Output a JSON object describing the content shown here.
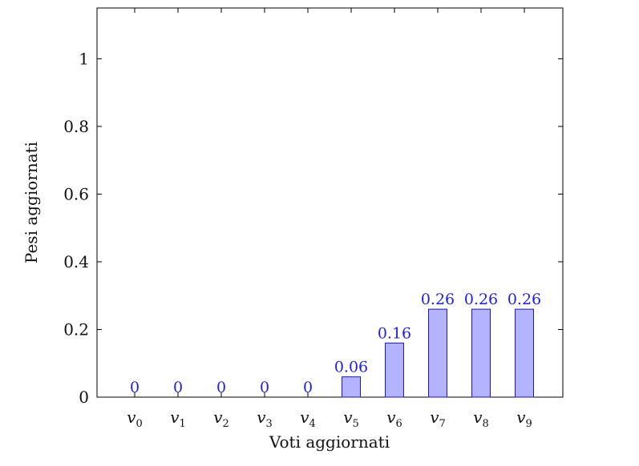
{
  "chart_data": {
    "type": "bar",
    "categories": [
      "v0",
      "v1",
      "v2",
      "v3",
      "v4",
      "v5",
      "v6",
      "v7",
      "v8",
      "v9"
    ],
    "category_base": "v",
    "category_subscripts": [
      "0",
      "1",
      "2",
      "3",
      "4",
      "5",
      "6",
      "7",
      "8",
      "9"
    ],
    "values": [
      0,
      0,
      0,
      0,
      0,
      0.06,
      0.16,
      0.26,
      0.26,
      0.26
    ],
    "value_labels": [
      "0",
      "0",
      "0",
      "0",
      "0",
      "0.06",
      "0.16",
      "0.26",
      "0.26",
      "0.26"
    ],
    "xlabel": "Voti aggiornati",
    "ylabel": "Pesi aggiornati",
    "ylim": [
      0,
      1.15
    ],
    "yticks": [
      0,
      0.2,
      0.4,
      0.6,
      0.8,
      1
    ],
    "ytick_labels": [
      "0",
      "0.2",
      "0.4",
      "0.6",
      "0.8",
      "1"
    ],
    "grid": false,
    "colors": {
      "bar_fill": "#b3b3ff",
      "bar_stroke": "#1a1ab8",
      "label": "#1f1fe0"
    }
  }
}
